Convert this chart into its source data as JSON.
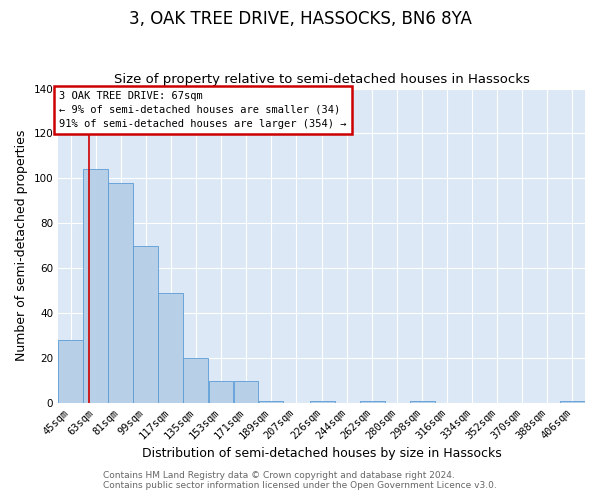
{
  "title": "3, OAK TREE DRIVE, HASSOCKS, BN6 8YA",
  "subtitle": "Size of property relative to semi-detached houses in Hassocks",
  "xlabel": "Distribution of semi-detached houses by size in Hassocks",
  "ylabel": "Number of semi-detached properties",
  "bin_edges": [
    45,
    63,
    81,
    99,
    117,
    135,
    153,
    171,
    189,
    207,
    226,
    244,
    262,
    280,
    298,
    316,
    334,
    352,
    370,
    388,
    406
  ],
  "bin_labels": [
    "45sqm",
    "63sqm",
    "81sqm",
    "99sqm",
    "117sqm",
    "135sqm",
    "153sqm",
    "171sqm",
    "189sqm",
    "207sqm",
    "226sqm",
    "244sqm",
    "262sqm",
    "280sqm",
    "298sqm",
    "316sqm",
    "334sqm",
    "352sqm",
    "370sqm",
    "388sqm",
    "406sqm"
  ],
  "bar_heights": [
    28,
    104,
    98,
    70,
    49,
    20,
    10,
    10,
    1,
    0,
    1,
    0,
    1,
    0,
    1,
    0,
    0,
    0,
    0,
    0,
    1
  ],
  "bar_color": "#b8cfe8",
  "bar_edge_color": "#5b9bd5",
  "property_line_x": 67,
  "property_line_color": "#cc0000",
  "ylim": [
    0,
    140
  ],
  "yticks": [
    0,
    20,
    40,
    60,
    80,
    100,
    120,
    140
  ],
  "annotation_title": "3 OAK TREE DRIVE: 67sqm",
  "annotation_line1": "← 9% of semi-detached houses are smaller (34)",
  "annotation_line2": "91% of semi-detached houses are larger (354) →",
  "annotation_box_color": "#ffffff",
  "annotation_box_edge": "#cc0000",
  "footer_line1": "Contains HM Land Registry data © Crown copyright and database right 2024.",
  "footer_line2": "Contains public sector information licensed under the Open Government Licence v3.0.",
  "fig_background_color": "#ffffff",
  "plot_background": "#dce8f5",
  "grid_color": "#ffffff",
  "title_fontsize": 12,
  "subtitle_fontsize": 9.5,
  "axis_label_fontsize": 9,
  "tick_fontsize": 7.5,
  "footer_fontsize": 6.5
}
